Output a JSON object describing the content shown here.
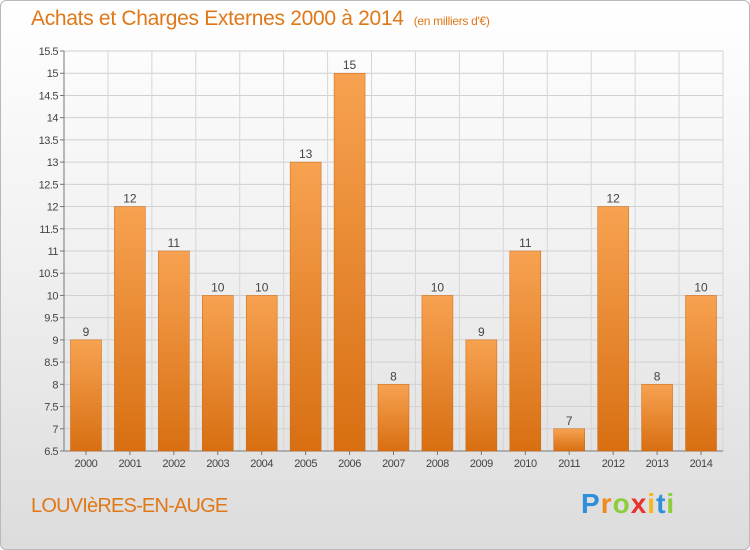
{
  "title": "Achats et Charges Externes 2000 à 2014",
  "unit": "(en milliers d'€)",
  "commune": "LOUVIèRES-EN-AUGE",
  "brand": "Proxiti",
  "colors": {
    "accent": "#e07818",
    "bar_top": "#f7a251",
    "bar_bottom": "#d86f12"
  },
  "chart_data": {
    "type": "bar",
    "categories": [
      "2000",
      "2001",
      "2002",
      "2003",
      "2004",
      "2005",
      "2006",
      "2007",
      "2008",
      "2009",
      "2010",
      "2011",
      "2012",
      "2013",
      "2014"
    ],
    "values": [
      9,
      12,
      11,
      10,
      10,
      13,
      15,
      8,
      10,
      9,
      11,
      7,
      12,
      8,
      10
    ],
    "data_labels": [
      "9",
      "12",
      "11",
      "10",
      "10",
      "13",
      "15",
      "8",
      "10",
      "9",
      "11",
      "7",
      "12",
      "8",
      "10"
    ],
    "ylim": [
      6.5,
      15.5
    ],
    "yticks": [
      6.5,
      7,
      7.5,
      8,
      8.5,
      9,
      9.5,
      10,
      10.5,
      11,
      11.5,
      12,
      12.5,
      13,
      13.5,
      14,
      14.5,
      15,
      15.5
    ],
    "ytick_labels": [
      "6.5",
      "7",
      "7.5",
      "8",
      "8.5",
      "9",
      "9.5",
      "10",
      "10.5",
      "11",
      "11.5",
      "12",
      "12.5",
      "13",
      "13.5",
      "14",
      "14.5",
      "15",
      "15.5"
    ],
    "grid": true,
    "legend": "none"
  }
}
